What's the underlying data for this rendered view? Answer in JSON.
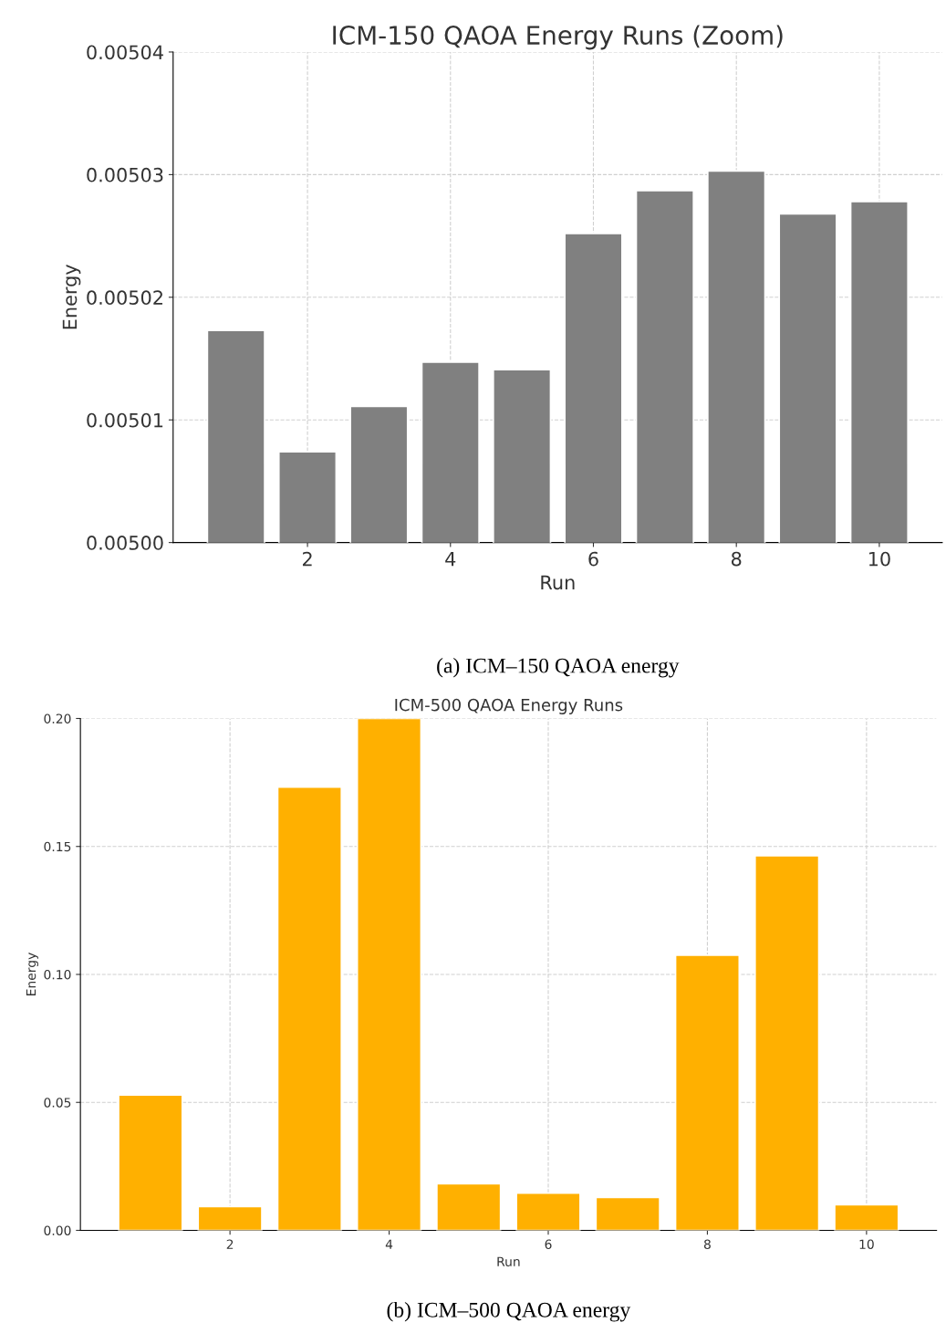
{
  "chart_data": [
    {
      "type": "bar",
      "title": "ICM-150 QAOA Energy Runs (Zoom)",
      "xlabel": "Run",
      "ylabel": "Energy",
      "x": [
        1,
        2,
        3,
        4,
        5,
        6,
        7,
        8,
        9,
        10
      ],
      "values": [
        0.0050173,
        0.0050074,
        0.0050111,
        0.0050147,
        0.0050141,
        0.0050252,
        0.0050287,
        0.0050303,
        0.0050268,
        0.0050278
      ],
      "color": "#808080",
      "xlim": [
        0.12,
        10.88
      ],
      "xticks": [
        2,
        4,
        6,
        8,
        10
      ],
      "ylim": [
        0.005,
        0.00504
      ],
      "yticks": [
        {
          "value": 0.005,
          "label": "0.00500"
        },
        {
          "value": 0.00501,
          "label": "0.00501"
        },
        {
          "value": 0.00502,
          "label": "0.00502"
        },
        {
          "value": 0.00503,
          "label": "0.00503"
        },
        {
          "value": 0.00504,
          "label": "0.00504"
        }
      ],
      "grid": true,
      "annotations": [
        "(a) ICM–150 QAOA energy"
      ]
    },
    {
      "type": "bar",
      "title": "ICM-500 QAOA Energy Runs",
      "xlabel": "Run",
      "ylabel": "Energy",
      "x": [
        1,
        2,
        3,
        4,
        5,
        6,
        7,
        8,
        9,
        10
      ],
      "values": [
        0.0529,
        0.0093,
        0.1732,
        0.2,
        0.0182,
        0.0146,
        0.0129,
        0.1075,
        0.1464,
        0.01
      ],
      "color": "#ffb000",
      "xlim": [
        0.12,
        10.88
      ],
      "xticks": [
        2,
        4,
        6,
        8,
        10
      ],
      "ylim": [
        0,
        0.2
      ],
      "yticks": [
        {
          "value": 0,
          "label": "0.00"
        },
        {
          "value": 0.05,
          "label": "0.05"
        },
        {
          "value": 0.1,
          "label": "0.10"
        },
        {
          "value": 0.15,
          "label": "0.15"
        },
        {
          "value": 0.2,
          "label": "0.20"
        }
      ],
      "grid": true,
      "annotations": [
        "(b) ICM–500 QAOA energy"
      ]
    }
  ]
}
